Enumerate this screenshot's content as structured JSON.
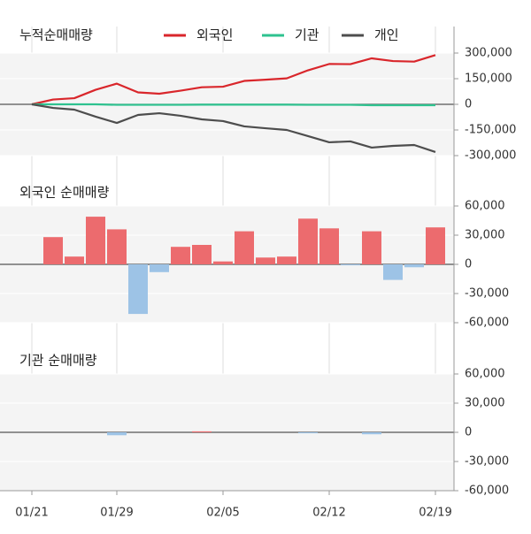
{
  "chart_data": [
    {
      "type": "line",
      "title": "누적순매매량",
      "series": [
        {
          "name": "외국인",
          "color": "#d9262b",
          "values": [
            0,
            28000,
            36000,
            85000,
            121000,
            70000,
            62000,
            80000,
            100000,
            103000,
            137000,
            144000,
            152000,
            199000,
            236000,
            235000,
            269000,
            253000,
            250000,
            288000
          ]
        },
        {
          "name": "기관",
          "color": "#2ec28f",
          "values": [
            0,
            0,
            0,
            0,
            -3000,
            -3000,
            -3000,
            -3000,
            -2000,
            -2000,
            -2000,
            -2000,
            -2000,
            -3000,
            -3000,
            -3000,
            -5000,
            -5000,
            -5000,
            -5000
          ]
        },
        {
          "name": "개인",
          "color": "#4d4d4d",
          "values": [
            0,
            -21000,
            -31000,
            -72000,
            -109000,
            -62000,
            -52000,
            -67000,
            -88000,
            -98000,
            -129000,
            -140000,
            -150000,
            -186000,
            -222000,
            -217000,
            -253000,
            -243000,
            -238000,
            -279000
          ]
        }
      ],
      "ylim": [
        -300000,
        300000
      ],
      "yticks": [
        {
          "value": 300000,
          "label": "300,000"
        },
        {
          "value": 150000,
          "label": "150,000"
        },
        0,
        {
          "value": -150000,
          "label": "-150,000"
        },
        {
          "value": -300000,
          "label": "-300,000"
        }
      ]
    },
    {
      "type": "bar",
      "title": "외국인 순매매량",
      "color": "#ec6b6e",
      "negative_color": "#9dc3e6",
      "values": [
        0,
        28000,
        8000,
        49000,
        36000,
        -51000,
        -8000,
        18000,
        20000,
        3000,
        34000,
        7000,
        8000,
        47000,
        37000,
        -1000,
        34000,
        -16000,
        -3000,
        38000
      ],
      "ylim": [
        -60000,
        60000
      ],
      "yticks": [
        {
          "value": 60000,
          "label": "60,000"
        },
        {
          "value": 30000,
          "label": "30,000"
        },
        0,
        {
          "value": -30000,
          "label": "-30,000"
        },
        {
          "value": -60000,
          "label": "-60,000"
        }
      ]
    },
    {
      "type": "bar",
      "title": "기관 순매매량",
      "color": "#ec6b6e",
      "negative_color": "#9dc3e6",
      "values": [
        0,
        0,
        0,
        0,
        -3000,
        0,
        0,
        0,
        1000,
        0,
        0,
        0,
        0,
        -1000,
        0,
        0,
        -2000,
        0,
        0,
        0
      ],
      "categories": [
        "01/21",
        null,
        null,
        null,
        "01/29",
        null,
        null,
        null,
        null,
        "02/05",
        null,
        null,
        null,
        null,
        "02/12",
        null,
        null,
        null,
        null,
        "02/19"
      ],
      "ylim": [
        -60000,
        60000
      ],
      "yticks": [
        {
          "value": 60000,
          "label": "60,000"
        },
        {
          "value": 30000,
          "label": "30,000"
        },
        0,
        {
          "value": -30000,
          "label": "-30,000"
        },
        {
          "value": -60000,
          "label": "-60,000"
        }
      ]
    }
  ]
}
